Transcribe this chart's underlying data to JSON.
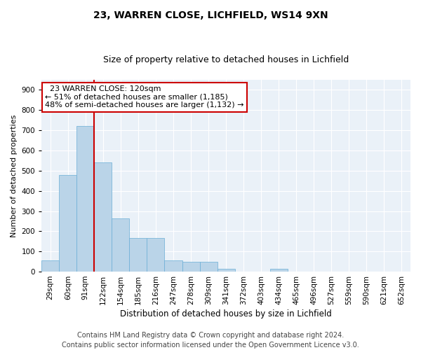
{
  "title1": "23, WARREN CLOSE, LICHFIELD, WS14 9XN",
  "title2": "Size of property relative to detached houses in Lichfield",
  "xlabel": "Distribution of detached houses by size in Lichfield",
  "ylabel": "Number of detached properties",
  "footer1": "Contains HM Land Registry data © Crown copyright and database right 2024.",
  "footer2": "Contains public sector information licensed under the Open Government Licence v3.0.",
  "bar_labels": [
    "29sqm",
    "60sqm",
    "91sqm",
    "122sqm",
    "154sqm",
    "185sqm",
    "216sqm",
    "247sqm",
    "278sqm",
    "309sqm",
    "341sqm",
    "372sqm",
    "403sqm",
    "434sqm",
    "465sqm",
    "496sqm",
    "527sqm",
    "559sqm",
    "590sqm",
    "621sqm",
    "652sqm"
  ],
  "bar_values": [
    55,
    480,
    720,
    540,
    265,
    165,
    165,
    55,
    50,
    50,
    15,
    0,
    0,
    15,
    0,
    0,
    0,
    0,
    0,
    0,
    0
  ],
  "bar_color": "#bad4e8",
  "bar_edgecolor": "#6aaed6",
  "background_color": "#eaf1f8",
  "vline_color": "#cc0000",
  "vline_bar_index": 2.5,
  "ylim": [
    0,
    950
  ],
  "yticks": [
    0,
    100,
    200,
    300,
    400,
    500,
    600,
    700,
    800,
    900
  ],
  "annotation_text": "  23 WARREN CLOSE: 120sqm  \n← 51% of detached houses are smaller (1,185)\n48% of semi-detached houses are larger (1,132) →",
  "annotation_box_color": "#ffffff",
  "annotation_box_edgecolor": "#cc0000",
  "title1_fontsize": 10,
  "title2_fontsize": 9,
  "xlabel_fontsize": 8.5,
  "ylabel_fontsize": 8,
  "tick_fontsize": 7.5,
  "footer_fontsize": 7,
  "annotation_fontsize": 8
}
